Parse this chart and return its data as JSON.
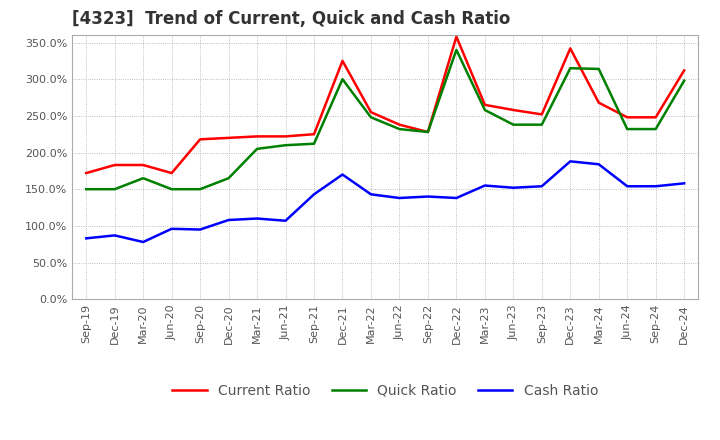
{
  "title": "[4323]  Trend of Current, Quick and Cash Ratio",
  "ylim": [
    0,
    360
  ],
  "yticks": [
    0,
    50,
    100,
    150,
    200,
    250,
    300,
    350
  ],
  "background_color": "#ffffff",
  "grid_color": "#aaaaaa",
  "x_labels": [
    "Sep-19",
    "Dec-19",
    "Mar-20",
    "Jun-20",
    "Sep-20",
    "Dec-20",
    "Mar-21",
    "Jun-21",
    "Sep-21",
    "Dec-21",
    "Mar-22",
    "Jun-22",
    "Sep-22",
    "Dec-22",
    "Mar-23",
    "Jun-23",
    "Sep-23",
    "Dec-23",
    "Mar-24",
    "Jun-24",
    "Sep-24",
    "Dec-24"
  ],
  "current_ratio": [
    172,
    183,
    183,
    172,
    218,
    220,
    222,
    222,
    225,
    325,
    255,
    238,
    228,
    358,
    265,
    258,
    252,
    342,
    268,
    248,
    248,
    312
  ],
  "quick_ratio": [
    150,
    150,
    165,
    150,
    150,
    165,
    205,
    210,
    212,
    300,
    248,
    232,
    228,
    340,
    258,
    238,
    238,
    315,
    314,
    232,
    232,
    298
  ],
  "cash_ratio": [
    83,
    87,
    78,
    96,
    95,
    108,
    110,
    107,
    143,
    170,
    143,
    138,
    140,
    138,
    155,
    152,
    154,
    188,
    184,
    154,
    154,
    158
  ],
  "current_color": "#ff0000",
  "quick_color": "#008000",
  "cash_color": "#0000ff",
  "line_width": 1.8,
  "title_fontsize": 12,
  "legend_fontsize": 10,
  "tick_fontsize": 8
}
